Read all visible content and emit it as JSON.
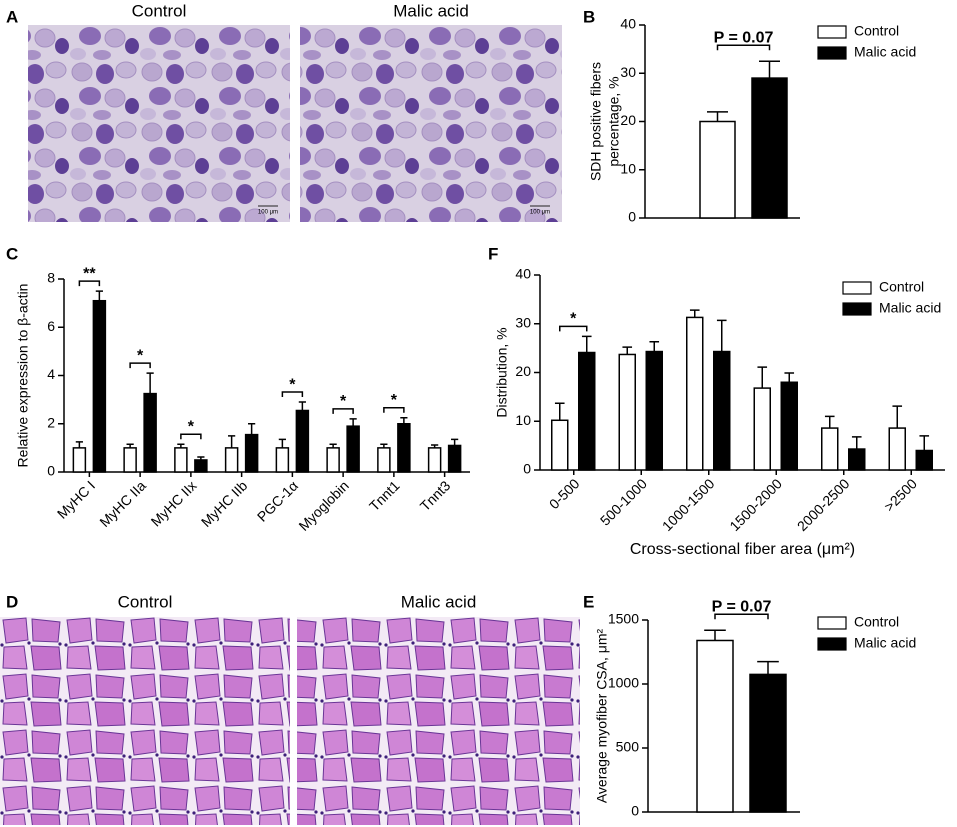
{
  "images": [
    {
      "panel": "A",
      "captions": [
        "Control",
        "Malic acid"
      ],
      "scale_labels": [
        "100 μm",
        "100 μm"
      ]
    },
    {
      "panel": "D",
      "captions": [
        "Control",
        "Malic acid"
      ]
    }
  ],
  "chart_data": [
    {
      "type": "bar",
      "panel": "B",
      "ylabel": [
        "SDH positive fibers",
        "percentage, %"
      ],
      "ylim": [
        0,
        40
      ],
      "yticks": [
        0,
        10,
        20,
        30,
        40
      ],
      "legend": "top-right",
      "annotation": "P = 0.07",
      "series": [
        {
          "name": "Control",
          "color": "#ffffff",
          "values": [
            20
          ],
          "errors": [
            2
          ]
        },
        {
          "name": "Malic acid",
          "color": "#000000",
          "values": [
            29
          ],
          "errors": [
            3.5
          ]
        }
      ]
    },
    {
      "type": "bar",
      "panel": "C",
      "ylabel": [
        "Relative expression to β-actin"
      ],
      "categories": [
        "MyHC I",
        "MyHC IIa",
        "MyHC IIx",
        "MyHC IIb",
        "PGC-1α",
        "Myoglobin",
        "Tnnt1",
        "Tnnt3"
      ],
      "ylim": [
        0,
        8
      ],
      "yticks": [
        0,
        2,
        4,
        6,
        8
      ],
      "significance": [
        "**",
        "*",
        "*",
        null,
        "*",
        "*",
        "*",
        null
      ],
      "series": [
        {
          "color": "#ffffff",
          "values": [
            1,
            1,
            1,
            1,
            1,
            1,
            1,
            1
          ],
          "errors": [
            0.25,
            0.15,
            0.15,
            0.5,
            0.35,
            0.15,
            0.15,
            0.12
          ]
        },
        {
          "color": "#000000",
          "values": [
            7.1,
            3.25,
            0.5,
            1.55,
            2.55,
            1.9,
            2.0,
            1.1
          ],
          "errors": [
            0.4,
            0.85,
            0.12,
            0.45,
            0.35,
            0.3,
            0.25,
            0.25
          ]
        }
      ]
    },
    {
      "type": "bar",
      "panel": "F",
      "ylabel": [
        "Distribution, %"
      ],
      "xlabel": "Cross-sectional fiber area (μm²)",
      "categories": [
        "0-500",
        "500-1000",
        "1000-1500",
        "1500-2000",
        "2000-2500",
        ">2500"
      ],
      "ylim": [
        0,
        40
      ],
      "yticks": [
        0,
        10,
        20,
        30,
        40
      ],
      "legend": "top-right",
      "significance": [
        "*",
        null,
        null,
        null,
        null,
        null
      ],
      "series": [
        {
          "name": "Control",
          "color": "#ffffff",
          "values": [
            10.2,
            23.7,
            31.3,
            16.8,
            8.6,
            8.6
          ],
          "errors": [
            3.5,
            1.5,
            1.5,
            4.3,
            2.4,
            4.5
          ]
        },
        {
          "name": "Malic acid",
          "color": "#000000",
          "values": [
            24.1,
            24.3,
            24.3,
            18,
            4.3,
            4
          ],
          "errors": [
            3.3,
            2,
            6.4,
            1.9,
            2.5,
            3
          ]
        }
      ]
    },
    {
      "type": "bar",
      "panel": "E",
      "ylabel": [
        "Average myofiber CSA, μm²"
      ],
      "ylim": [
        0,
        1500
      ],
      "yticks": [
        0,
        500,
        1000,
        1500
      ],
      "legend": "top-right",
      "annotation": "P = 0.07",
      "series": [
        {
          "name": "Control",
          "color": "#ffffff",
          "values": [
            1340
          ],
          "errors": [
            80
          ]
        },
        {
          "name": "Malic acid",
          "color": "#000000",
          "values": [
            1075
          ],
          "errors": [
            100
          ]
        }
      ]
    }
  ]
}
